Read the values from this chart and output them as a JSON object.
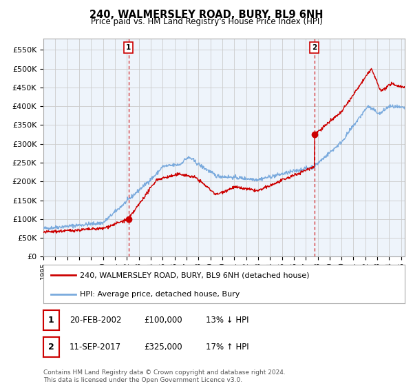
{
  "title": "240, WALMERSLEY ROAD, BURY, BL9 6NH",
  "subtitle": "Price paid vs. HM Land Registry's House Price Index (HPI)",
  "ytick_values": [
    0,
    50000,
    100000,
    150000,
    200000,
    250000,
    300000,
    350000,
    400000,
    450000,
    500000,
    550000
  ],
  "ylim": [
    0,
    580000
  ],
  "xlim_start": 1995.0,
  "xlim_end": 2025.3,
  "sale1_x": 2002.13,
  "sale1_y": 100000,
  "sale1_label": "1",
  "sale2_x": 2017.72,
  "sale2_y": 325000,
  "sale2_label": "2",
  "line_color_property": "#cc0000",
  "line_color_hpi": "#7aaadd",
  "annotation_line_color": "#cc0000",
  "background_color": "#ffffff",
  "grid_color": "#cccccc",
  "legend_label_property": "240, WALMERSLEY ROAD, BURY, BL9 6NH (detached house)",
  "legend_label_hpi": "HPI: Average price, detached house, Bury",
  "annotation1_date": "20-FEB-2002",
  "annotation1_price": "£100,000",
  "annotation1_hpi": "13% ↓ HPI",
  "annotation2_date": "11-SEP-2017",
  "annotation2_price": "£325,000",
  "annotation2_hpi": "17% ↑ HPI",
  "footnote": "Contains HM Land Registry data © Crown copyright and database right 2024.\nThis data is licensed under the Open Government Licence v3.0."
}
